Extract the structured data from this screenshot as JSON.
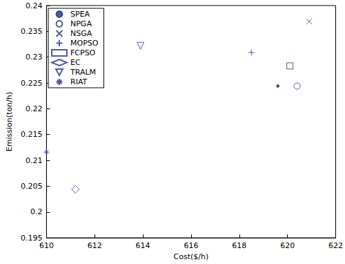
{
  "chart_data": {
    "type": "scatter",
    "x_label": "Cost($/h)",
    "y_label": "Emission(ton/h)",
    "xlim": [
      610,
      622
    ],
    "xticks": [
      610,
      612,
      614,
      616,
      618,
      620,
      622
    ],
    "ylim": [
      0.195,
      0.24
    ],
    "yticks": [
      0.195,
      0.2,
      0.205,
      0.21,
      0.215,
      0.22,
      0.225,
      0.23,
      0.235,
      0.24
    ],
    "grid": false,
    "legend": "upper left",
    "color": "#23318c",
    "series": [
      {
        "name": "SPEA",
        "marker": "point",
        "x": [
          619.6
        ],
        "values": [
          0.2244
        ]
      },
      {
        "name": "NPGA",
        "marker": "circle",
        "x": [
          620.4
        ],
        "values": [
          0.2244
        ]
      },
      {
        "name": "NSGA",
        "marker": "x",
        "x": [
          620.9
        ],
        "values": [
          0.2369
        ]
      },
      {
        "name": "MOPSO",
        "marker": "plus",
        "x": [
          618.5
        ],
        "values": [
          0.2309
        ]
      },
      {
        "name": "FCPSO",
        "marker": "square",
        "x": [
          620.1
        ],
        "values": [
          0.2283
        ]
      },
      {
        "name": "EC",
        "marker": "diamond",
        "x": [
          611.2
        ],
        "values": [
          0.2044
        ]
      },
      {
        "name": "TRALM",
        "marker": "triangle_down",
        "x": [
          613.9
        ],
        "values": [
          0.2322
        ]
      },
      {
        "name": "RIAT",
        "marker": "asterisk",
        "x": [
          610.0
        ],
        "values": [
          0.2116
        ]
      }
    ]
  }
}
